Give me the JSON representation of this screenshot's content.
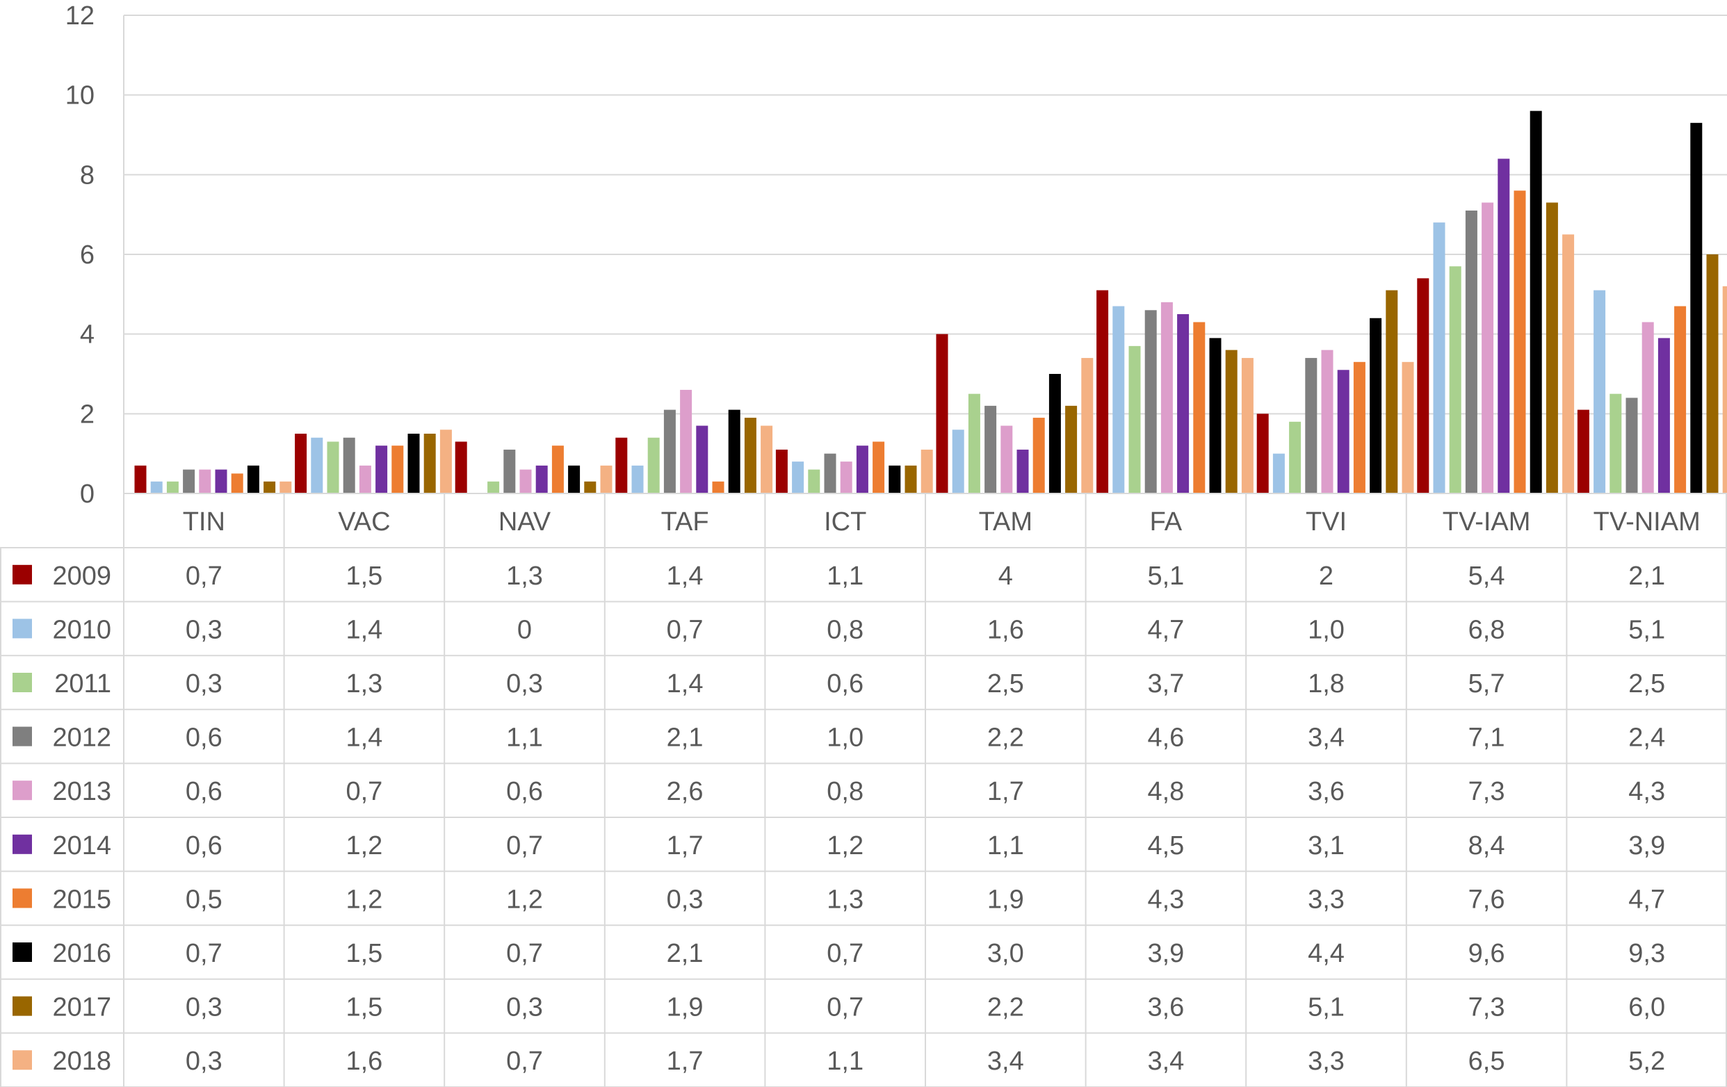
{
  "chart_data": {
    "type": "bar",
    "title": "",
    "xlabel": "",
    "ylabel": "",
    "ylim": [
      0,
      12
    ],
    "yticks": [
      "0",
      "2",
      "4",
      "6",
      "8",
      "10",
      "12"
    ],
    "grid": true,
    "legend": "data-table",
    "categories": [
      "TIN",
      "VAC",
      "NAV",
      "TAF",
      "ICT",
      "TAM",
      "FA",
      "TVI",
      "TV-IAM",
      "TV-NIAM"
    ],
    "series": [
      {
        "name": "2009",
        "color": "#9b0000",
        "values": [
          0.7,
          1.5,
          1.3,
          1.4,
          1.1,
          4,
          5.1,
          2,
          5.4,
          2.1
        ],
        "labels": [
          "0,7",
          "1,5",
          "1,3",
          "1,4",
          "1,1",
          "4",
          "5,1",
          "2",
          "5,4",
          "2,1"
        ]
      },
      {
        "name": "2010",
        "color": "#9dc3e6",
        "values": [
          0.3,
          1.4,
          0,
          0.7,
          0.8,
          1.6,
          4.7,
          1.0,
          6.8,
          5.1
        ],
        "labels": [
          "0,3",
          "1,4",
          "0",
          "0,7",
          "0,8",
          "1,6",
          "4,7",
          "1,0",
          "6,8",
          "5,1"
        ]
      },
      {
        "name": "2011",
        "color": "#a9d18e",
        "values": [
          0.3,
          1.3,
          0.3,
          1.4,
          0.6,
          2.5,
          3.7,
          1.8,
          5.7,
          2.5
        ],
        "labels": [
          "0,3",
          "1,3",
          "0,3",
          "1,4",
          "0,6",
          "2,5",
          "3,7",
          "1,8",
          "5,7",
          "2,5"
        ]
      },
      {
        "name": "2012",
        "color": "#7f7f7f",
        "values": [
          0.6,
          1.4,
          1.1,
          2.1,
          1.0,
          2.2,
          4.6,
          3.4,
          7.1,
          2.4
        ],
        "labels": [
          "0,6",
          "1,4",
          "1,1",
          "2,1",
          "1,0",
          "2,2",
          "4,6",
          "3,4",
          "7,1",
          "2,4"
        ]
      },
      {
        "name": "2013",
        "color": "#dd9ecb",
        "values": [
          0.6,
          0.7,
          0.6,
          2.6,
          0.8,
          1.7,
          4.8,
          3.6,
          7.3,
          4.3
        ],
        "labels": [
          "0,6",
          "0,7",
          "0,6",
          "2,6",
          "0,8",
          "1,7",
          "4,8",
          "3,6",
          "7,3",
          "4,3"
        ]
      },
      {
        "name": "2014",
        "color": "#7030a0",
        "values": [
          0.6,
          1.2,
          0.7,
          1.7,
          1.2,
          1.1,
          4.5,
          3.1,
          8.4,
          3.9
        ],
        "labels": [
          "0,6",
          "1,2",
          "0,7",
          "1,7",
          "1,2",
          "1,1",
          "4,5",
          "3,1",
          "8,4",
          "3,9"
        ]
      },
      {
        "name": "2015",
        "color": "#ed7d31",
        "values": [
          0.5,
          1.2,
          1.2,
          0.3,
          1.3,
          1.9,
          4.3,
          3.3,
          7.6,
          4.7
        ],
        "labels": [
          "0,5",
          "1,2",
          "1,2",
          "0,3",
          "1,3",
          "1,9",
          "4,3",
          "3,3",
          "7,6",
          "4,7"
        ]
      },
      {
        "name": "2016",
        "color": "#000000",
        "values": [
          0.7,
          1.5,
          0.7,
          2.1,
          0.7,
          3.0,
          3.9,
          4.4,
          9.6,
          9.3
        ],
        "labels": [
          "0,7",
          "1,5",
          "0,7",
          "2,1",
          "0,7",
          "3,0",
          "3,9",
          "4,4",
          "9,6",
          "9,3"
        ]
      },
      {
        "name": "2017",
        "color": "#996600",
        "values": [
          0.3,
          1.5,
          0.3,
          1.9,
          0.7,
          2.2,
          3.6,
          5.1,
          7.3,
          6.0
        ],
        "labels": [
          "0,3",
          "1,5",
          "0,3",
          "1,9",
          "0,7",
          "2,2",
          "3,6",
          "5,1",
          "7,3",
          "6,0"
        ]
      },
      {
        "name": "2018",
        "color": "#f4b183",
        "values": [
          0.3,
          1.6,
          0.7,
          1.7,
          1.1,
          3.4,
          3.4,
          3.3,
          6.5,
          5.2
        ],
        "labels": [
          "0,3",
          "1,6",
          "0,7",
          "1,7",
          "1,1",
          "3,4",
          "3,4",
          "3,3",
          "6,5",
          "5,2"
        ]
      }
    ]
  }
}
